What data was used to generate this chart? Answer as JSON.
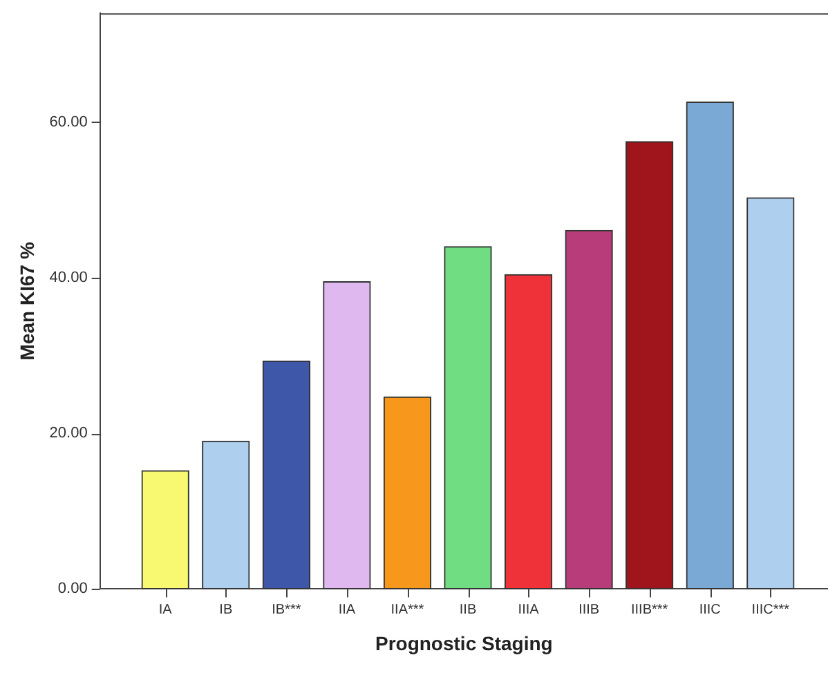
{
  "chart_data": {
    "type": "bar",
    "xlabel": "Prognostic Staging",
    "ylabel": "Mean KI67 %",
    "categories": [
      "IA",
      "IB",
      "IB***",
      "IIA",
      "IIA***",
      "IIB",
      "IIIA",
      "IIIB",
      "IIIB***",
      "IIIC",
      "IIIC***"
    ],
    "values": [
      15.2,
      19.0,
      29.3,
      39.5,
      24.7,
      44.0,
      40.4,
      46.1,
      57.5,
      62.6,
      50.3
    ],
    "colors": [
      "#f9f871",
      "#aed0ee",
      "#3e57a8",
      "#dfb8f0",
      "#f7981d",
      "#70dd82",
      "#ef3139",
      "#b93c7a",
      "#a0151b",
      "#7aa9d5",
      "#aed0ee"
    ],
    "ylim": [
      0,
      74
    ],
    "yticks": [
      {
        "value": 0,
        "label": "0.00"
      },
      {
        "value": 20,
        "label": "20.00"
      },
      {
        "value": 40,
        "label": "40.00"
      },
      {
        "value": 60,
        "label": "60.00"
      }
    ],
    "grid": false,
    "legend": false
  }
}
